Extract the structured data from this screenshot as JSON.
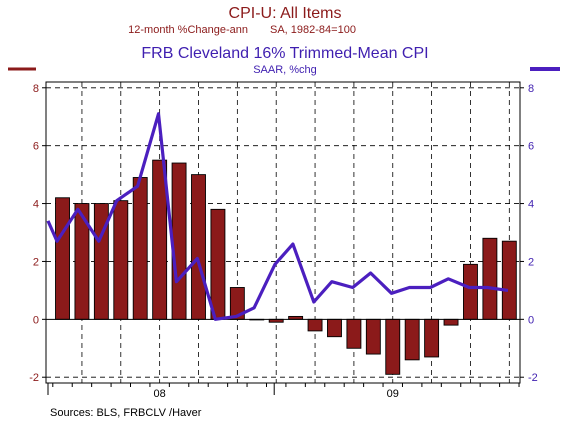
{
  "chart_data": {
    "type": "bar+line",
    "titles": {
      "bar_title": "CPI-U: All Items",
      "bar_subtitle_left": "12-month %Change-ann",
      "bar_subtitle_right": "SA, 1982-84=100",
      "line_title": "FRB Cleveland 16% Trimmed-Mean CPI",
      "line_subtitle": "SAAR, %chg"
    },
    "ylim": [
      -2.2,
      8.2
    ],
    "y_ticks": [
      "8",
      "6",
      "4",
      "2",
      "0",
      "-2"
    ],
    "y_tick_values": [
      8,
      6,
      4,
      2,
      0,
      -2
    ],
    "x_year_labels": [
      {
        "label": "08",
        "month_index": 5
      },
      {
        "label": "09",
        "month_index": 17
      }
    ],
    "months": 24,
    "series": [
      {
        "name": "CPI-U: All Items",
        "kind": "bar",
        "color": "#8B1A1A",
        "values": [
          4.2,
          4.0,
          4.0,
          4.1,
          4.9,
          5.5,
          5.4,
          5.0,
          3.8,
          1.1,
          0.0,
          -0.1,
          0.1,
          -0.4,
          -0.6,
          -1.0,
          -1.2,
          -1.9,
          -1.4,
          -1.3,
          -0.2,
          1.9,
          2.8,
          2.7
        ]
      },
      {
        "name": "FRB Cleveland 16% Trimmed-Mean CPI",
        "kind": "line",
        "color": "#4B1FBF",
        "points": [
          [
            -0.5,
            3.4
          ],
          [
            -0.2,
            2.7
          ],
          [
            0.5,
            3.8
          ],
          [
            1.2,
            2.7
          ],
          [
            1.8,
            4.1
          ],
          [
            2.5,
            4.6
          ],
          [
            3.2,
            7.1
          ],
          [
            3.8,
            1.3
          ],
          [
            4.5,
            2.1
          ],
          [
            5.1,
            0.0
          ],
          [
            5.8,
            0.1
          ],
          [
            6.4,
            0.4
          ],
          [
            7.1,
            1.9
          ],
          [
            7.7,
            2.6
          ],
          [
            8.4,
            0.6
          ],
          [
            9.0,
            1.3
          ],
          [
            9.7,
            1.1
          ],
          [
            10.3,
            1.6
          ],
          [
            11.0,
            0.9
          ],
          [
            11.6,
            1.1
          ],
          [
            12.3,
            1.1
          ],
          [
            12.9,
            1.4
          ],
          [
            13.6,
            1.1
          ],
          [
            14.2,
            1.1
          ],
          [
            14.9,
            1.0
          ]
        ]
      }
    ],
    "legend_colors": {
      "left": "#8B1A1A",
      "right": "#4B1FBF"
    },
    "grid": true,
    "source": "Sources:  BLS, FRBCLV /Haver"
  }
}
